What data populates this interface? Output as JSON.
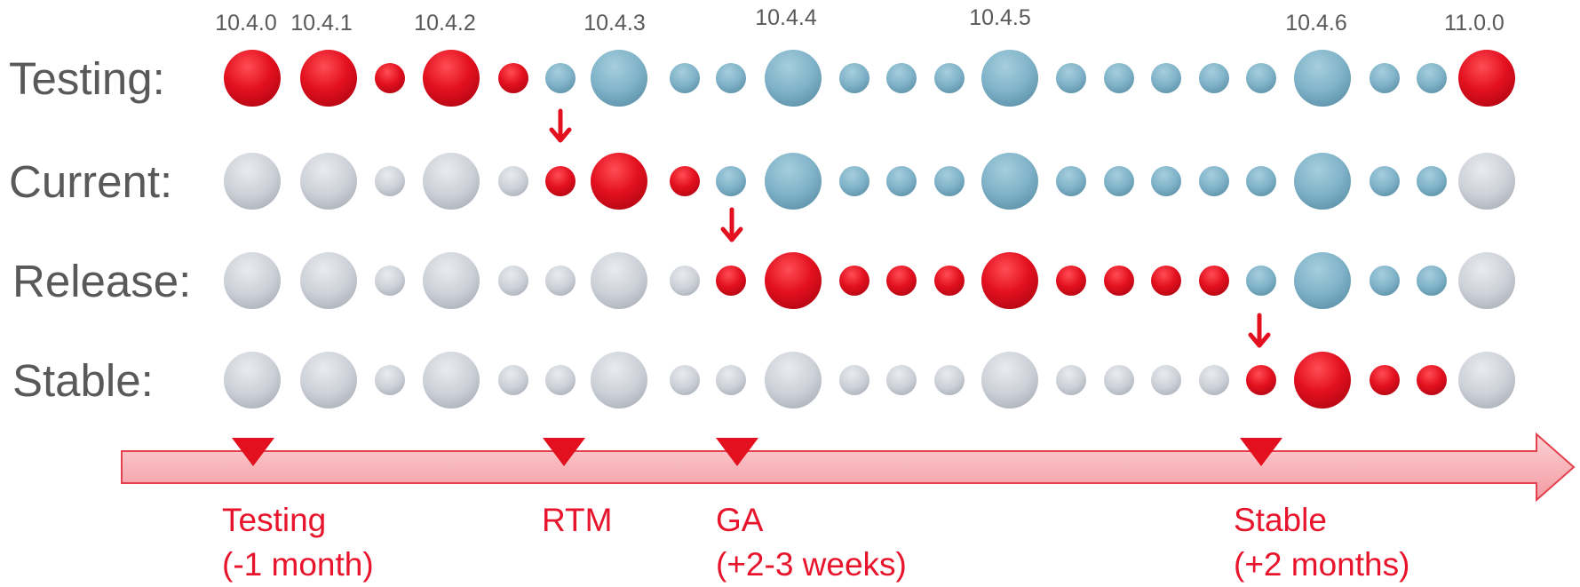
{
  "versions": [
    "10.4.0",
    "10.4.1",
    "10.4.2",
    "10.4.3",
    "10.4.4",
    "10.4.5",
    "10.4.6",
    "11.0.0"
  ],
  "rows": [
    {
      "label": "Testing:"
    },
    {
      "label": "Current:"
    },
    {
      "label": "Release:"
    },
    {
      "label": "Stable:"
    }
  ],
  "milestones": [
    {
      "name": "Testing",
      "detail": "(-1 month)"
    },
    {
      "name": "RTM",
      "detail": ""
    },
    {
      "name": "GA",
      "detail": "(+2-3 weeks)"
    },
    {
      "name": "Stable",
      "detail": "(+2 months)"
    }
  ],
  "colors": {
    "active_red": "#e3101f",
    "pending_blue": "#7fb2c8",
    "past_gray": "#cdd1d8",
    "timeline_fill": "#f6aeb2",
    "timeline_stroke": "#e2414d",
    "marker_red": "#e3101f",
    "label_gray": "#595959",
    "milestone_text": "#e8142b"
  },
  "icons": {
    "arrow": "down-arrow-icon",
    "marker": "triangle-marker-icon"
  }
}
